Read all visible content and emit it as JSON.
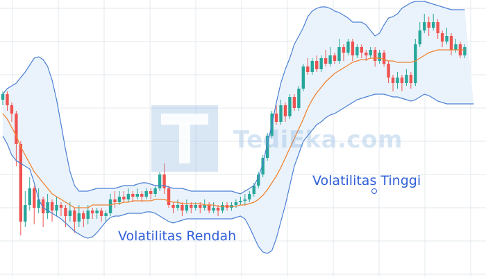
{
  "chart_data": {
    "type": "candlestick",
    "title": "",
    "xlabel": "",
    "ylabel": "",
    "grid": true,
    "ylim": [
      0,
      100
    ],
    "colors": {
      "up": "#26a69a",
      "down": "#ef5350",
      "band": "#4a7fd4",
      "band_fill": "#eaf3fb",
      "middle": "#f0812f",
      "grid": "#e3e8ee"
    },
    "annotations": [
      {
        "text": "Volatilitas Rendah",
        "color": "#2f5fd8"
      },
      {
        "text": "Volatilitas Tinggi",
        "color": "#2f5fd8"
      }
    ],
    "watermark": "TediEka.com",
    "series": [
      {
        "kind": "candles",
        "candles": [
          {
            "o": 64,
            "c": 66,
            "h": 67,
            "l": 62
          },
          {
            "o": 66,
            "c": 62,
            "h": 67,
            "l": 60
          },
          {
            "o": 62,
            "c": 59,
            "h": 63,
            "l": 56
          },
          {
            "o": 59,
            "c": 48,
            "h": 60,
            "l": 40
          },
          {
            "o": 48,
            "c": 20,
            "h": 49,
            "l": 15
          },
          {
            "o": 20,
            "c": 26,
            "h": 31,
            "l": 18
          },
          {
            "o": 26,
            "c": 32,
            "h": 36,
            "l": 24
          },
          {
            "o": 32,
            "c": 25,
            "h": 33,
            "l": 19
          },
          {
            "o": 25,
            "c": 28,
            "h": 32,
            "l": 23
          },
          {
            "o": 28,
            "c": 23,
            "h": 29,
            "l": 18
          },
          {
            "o": 23,
            "c": 27,
            "h": 30,
            "l": 21
          },
          {
            "o": 27,
            "c": 24,
            "h": 28,
            "l": 20
          },
          {
            "o": 24,
            "c": 26,
            "h": 29,
            "l": 22
          },
          {
            "o": 26,
            "c": 25,
            "h": 27,
            "l": 22
          },
          {
            "o": 25,
            "c": 22,
            "h": 26,
            "l": 18
          },
          {
            "o": 22,
            "c": 24,
            "h": 27,
            "l": 20
          },
          {
            "o": 24,
            "c": 20,
            "h": 25,
            "l": 16
          },
          {
            "o": 20,
            "c": 23,
            "h": 26,
            "l": 18
          },
          {
            "o": 23,
            "c": 21,
            "h": 24,
            "l": 18
          },
          {
            "o": 21,
            "c": 24,
            "h": 26,
            "l": 19
          },
          {
            "o": 24,
            "c": 23,
            "h": 25,
            "l": 21
          },
          {
            "o": 23,
            "c": 24,
            "h": 25,
            "l": 21
          },
          {
            "o": 24,
            "c": 22,
            "h": 25,
            "l": 20
          },
          {
            "o": 22,
            "c": 23,
            "h": 24,
            "l": 20
          },
          {
            "o": 23,
            "c": 28,
            "h": 30,
            "l": 22
          },
          {
            "o": 28,
            "c": 27,
            "h": 31,
            "l": 25
          },
          {
            "o": 27,
            "c": 29,
            "h": 31,
            "l": 26
          },
          {
            "o": 29,
            "c": 28,
            "h": 31,
            "l": 27
          },
          {
            "o": 28,
            "c": 30,
            "h": 32,
            "l": 27
          },
          {
            "o": 30,
            "c": 29,
            "h": 31,
            "l": 27
          },
          {
            "o": 29,
            "c": 30,
            "h": 32,
            "l": 28
          },
          {
            "o": 30,
            "c": 29,
            "h": 31,
            "l": 27
          },
          {
            "o": 29,
            "c": 31,
            "h": 32,
            "l": 28
          },
          {
            "o": 31,
            "c": 30,
            "h": 32,
            "l": 28
          },
          {
            "o": 30,
            "c": 32,
            "h": 33,
            "l": 29
          },
          {
            "o": 32,
            "c": 37,
            "h": 38,
            "l": 31
          },
          {
            "o": 37,
            "c": 32,
            "h": 41,
            "l": 30
          },
          {
            "o": 32,
            "c": 26,
            "h": 33,
            "l": 25
          },
          {
            "o": 26,
            "c": 25,
            "h": 27,
            "l": 23
          },
          {
            "o": 25,
            "c": 26,
            "h": 28,
            "l": 24
          },
          {
            "o": 26,
            "c": 24,
            "h": 27,
            "l": 22
          },
          {
            "o": 24,
            "c": 26,
            "h": 28,
            "l": 23
          },
          {
            "o": 26,
            "c": 25,
            "h": 27,
            "l": 23
          },
          {
            "o": 25,
            "c": 26,
            "h": 27,
            "l": 24
          },
          {
            "o": 26,
            "c": 25,
            "h": 27,
            "l": 23
          },
          {
            "o": 25,
            "c": 26,
            "h": 28,
            "l": 24
          },
          {
            "o": 26,
            "c": 24,
            "h": 27,
            "l": 23
          },
          {
            "o": 24,
            "c": 25,
            "h": 27,
            "l": 23
          },
          {
            "o": 25,
            "c": 24,
            "h": 26,
            "l": 22
          },
          {
            "o": 24,
            "c": 26,
            "h": 27,
            "l": 23
          },
          {
            "o": 26,
            "c": 25,
            "h": 27,
            "l": 24
          },
          {
            "o": 25,
            "c": 26,
            "h": 27,
            "l": 24
          },
          {
            "o": 26,
            "c": 27,
            "h": 28,
            "l": 25
          },
          {
            "o": 27,
            "c": 27.5,
            "h": 29,
            "l": 26
          },
          {
            "o": 27.5,
            "c": 28,
            "h": 30,
            "l": 26
          },
          {
            "o": 28,
            "c": 30,
            "h": 31,
            "l": 27
          },
          {
            "o": 30,
            "c": 33,
            "h": 34,
            "l": 29
          },
          {
            "o": 33,
            "c": 37,
            "h": 38,
            "l": 32
          },
          {
            "o": 37,
            "c": 43,
            "h": 44,
            "l": 36
          },
          {
            "o": 43,
            "c": 51,
            "h": 52,
            "l": 42
          },
          {
            "o": 51,
            "c": 59,
            "h": 60,
            "l": 50
          },
          {
            "o": 59,
            "c": 56,
            "h": 62,
            "l": 55
          },
          {
            "o": 56,
            "c": 62,
            "h": 64,
            "l": 55
          },
          {
            "o": 62,
            "c": 58,
            "h": 63,
            "l": 56
          },
          {
            "o": 58,
            "c": 65,
            "h": 66,
            "l": 57
          },
          {
            "o": 65,
            "c": 61,
            "h": 66,
            "l": 60
          },
          {
            "o": 61,
            "c": 68,
            "h": 69,
            "l": 60
          },
          {
            "o": 68,
            "c": 76,
            "h": 77,
            "l": 67
          },
          {
            "o": 76,
            "c": 74,
            "h": 79,
            "l": 73
          },
          {
            "o": 74,
            "c": 78,
            "h": 79,
            "l": 73
          },
          {
            "o": 78,
            "c": 75,
            "h": 80,
            "l": 74
          },
          {
            "o": 75,
            "c": 79,
            "h": 80,
            "l": 74
          },
          {
            "o": 79,
            "c": 77,
            "h": 82,
            "l": 76
          },
          {
            "o": 77,
            "c": 80,
            "h": 83,
            "l": 76
          },
          {
            "o": 80,
            "c": 78,
            "h": 81,
            "l": 77
          },
          {
            "o": 78,
            "c": 83,
            "h": 86,
            "l": 77
          },
          {
            "o": 83,
            "c": 81,
            "h": 84,
            "l": 78
          },
          {
            "o": 81,
            "c": 85,
            "h": 86,
            "l": 80
          },
          {
            "o": 85,
            "c": 80,
            "h": 86,
            "l": 78
          },
          {
            "o": 80,
            "c": 83,
            "h": 84,
            "l": 79
          },
          {
            "o": 83,
            "c": 81,
            "h": 84,
            "l": 79
          },
          {
            "o": 81,
            "c": 80,
            "h": 82,
            "l": 78
          },
          {
            "o": 80,
            "c": 82,
            "h": 83,
            "l": 79
          },
          {
            "o": 82,
            "c": 78,
            "h": 83,
            "l": 76
          },
          {
            "o": 78,
            "c": 81,
            "h": 82,
            "l": 77
          },
          {
            "o": 81,
            "c": 77,
            "h": 82,
            "l": 76
          },
          {
            "o": 77,
            "c": 72,
            "h": 78,
            "l": 70
          },
          {
            "o": 72,
            "c": 70,
            "h": 73,
            "l": 67
          },
          {
            "o": 70,
            "c": 72,
            "h": 74,
            "l": 68
          },
          {
            "o": 72,
            "c": 70,
            "h": 73,
            "l": 67
          },
          {
            "o": 70,
            "c": 73,
            "h": 75,
            "l": 69
          },
          {
            "o": 73,
            "c": 70,
            "h": 74,
            "l": 68
          },
          {
            "o": 70,
            "c": 84,
            "h": 86,
            "l": 69
          },
          {
            "o": 84,
            "c": 89,
            "h": 92,
            "l": 83
          },
          {
            "o": 89,
            "c": 92,
            "h": 95,
            "l": 88
          },
          {
            "o": 92,
            "c": 90,
            "h": 94,
            "l": 87
          },
          {
            "o": 90,
            "c": 92,
            "h": 95,
            "l": 89
          },
          {
            "o": 92,
            "c": 88,
            "h": 93,
            "l": 86
          },
          {
            "o": 88,
            "c": 85,
            "h": 89,
            "l": 83
          },
          {
            "o": 85,
            "c": 87,
            "h": 90,
            "l": 84
          },
          {
            "o": 87,
            "c": 82,
            "h": 88,
            "l": 80
          },
          {
            "o": 82,
            "c": 84,
            "h": 86,
            "l": 81
          },
          {
            "o": 84,
            "c": 80,
            "h": 85,
            "l": 79
          },
          {
            "o": 80,
            "c": 83,
            "h": 84,
            "l": 79
          }
        ]
      },
      {
        "kind": "line",
        "role": "middle",
        "values": [
          59,
          57,
          54,
          51,
          47,
          44,
          41,
          38,
          36,
          34,
          32,
          30,
          29,
          28,
          27,
          26,
          25,
          25,
          25,
          25,
          26,
          26,
          26,
          26,
          26,
          26.5,
          26.5,
          27,
          27,
          27.5,
          27.5,
          27.5,
          27.5,
          27.5,
          28,
          28,
          28,
          27.5,
          27,
          27,
          26.5,
          26.5,
          26.5,
          26.5,
          26.5,
          26,
          26,
          26,
          25.5,
          25.5,
          25.5,
          25.5,
          25.5,
          26,
          26,
          26.5,
          27,
          28,
          29.5,
          31.5,
          34,
          36.5,
          39.5,
          43,
          46.5,
          50,
          53.5,
          57,
          61,
          64,
          66.5,
          68.5,
          70.5,
          72,
          73.5,
          74.5,
          75.5,
          76.5,
          77.5,
          78,
          78.5,
          78.5,
          79,
          79,
          79,
          78.5,
          78,
          78,
          77.5,
          77.5,
          77.5,
          77.5,
          78,
          79,
          80,
          81,
          81.5,
          82,
          82,
          82,
          82,
          82,
          82,
          82
        ]
      },
      {
        "kind": "line",
        "role": "upper",
        "values": [
          66,
          68,
          69,
          70,
          72,
          74,
          76.5,
          79,
          79.5,
          78.5,
          76,
          71,
          64,
          55,
          46,
          38,
          33,
          31,
          31,
          31,
          31.5,
          32,
          32,
          32,
          32,
          32,
          32.5,
          33,
          33,
          33,
          33.5,
          34,
          34,
          33.5,
          33,
          33,
          33,
          32.5,
          32,
          32,
          32,
          31.5,
          31,
          31,
          31,
          31,
          31,
          31,
          31,
          31,
          31,
          31,
          30.5,
          30,
          31,
          32,
          33,
          36,
          41,
          48,
          55,
          63,
          70,
          75,
          79,
          84,
          87,
          90,
          94,
          96,
          97,
          97.5,
          97.5,
          97,
          96,
          95.5,
          94.5,
          93.5,
          92,
          92,
          92,
          91,
          89,
          87,
          88,
          91,
          93.5,
          94,
          95,
          97,
          98,
          99,
          99.5,
          99.5,
          99.5,
          99,
          98.5,
          98,
          97.5,
          97,
          96.5,
          96.5,
          96.5,
          96.5
        ]
      },
      {
        "kind": "line",
        "role": "lower",
        "values": [
          51,
          48,
          44,
          42,
          41,
          40,
          39,
          34,
          28,
          25,
          24,
          23,
          22,
          21,
          19.5,
          18,
          16.5,
          15.5,
          14.5,
          14,
          14.5,
          16,
          18,
          20,
          21.5,
          22,
          22,
          22.5,
          23,
          23,
          23,
          23,
          23.5,
          23.5,
          23,
          22,
          21,
          20,
          19.5,
          20,
          20.5,
          21,
          21,
          21,
          21,
          21,
          21,
          21,
          21,
          21,
          21,
          21,
          21.5,
          22,
          21,
          18,
          14.5,
          11,
          9,
          8.5,
          9.5,
          14,
          20,
          26,
          33,
          40,
          44.5,
          49,
          51,
          53,
          55,
          56,
          57.5,
          58.5,
          59,
          60,
          61,
          62,
          63,
          64,
          64.5,
          65,
          65.5,
          66,
          66,
          66,
          65.5,
          65,
          65,
          64.5,
          64,
          63.5,
          64,
          65,
          66,
          65.5,
          64.5,
          63.5,
          63,
          62.5,
          62.5,
          62.5,
          62.5,
          62.5,
          62.5,
          62.5
        ]
      }
    ]
  }
}
